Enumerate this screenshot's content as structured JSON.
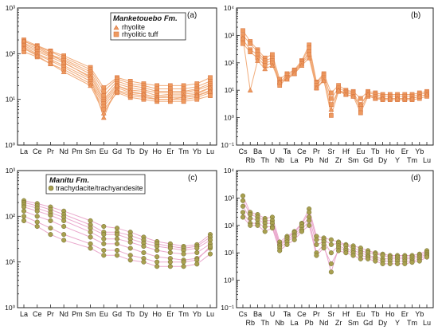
{
  "colors": {
    "orange_line": "#f0a36d",
    "orange_fill": "#ee9a60",
    "orange_stroke": "#d4703a",
    "olive_line": "#e8a0c8",
    "olive_fill": "#a8a050",
    "olive_stroke": "#6f6a2c"
  },
  "chart_data": [
    {
      "type": "line",
      "panel_label": "(a)",
      "scale": "log",
      "ylim_exp": [
        0,
        3
      ],
      "ytick_labels": [
        "10⁰",
        "10¹",
        "10²",
        "10³"
      ],
      "x_top": [
        "La",
        "Ce",
        "Pr",
        "Nd",
        "Pm",
        "Sm",
        "Eu",
        "Gd",
        "Tb",
        "Dy",
        "Ho",
        "Er",
        "Tm",
        "Yb",
        "Lu"
      ],
      "x_bottom": [],
      "legend": {
        "title": "Manketouebo Fm.",
        "entries": [
          {
            "label": "rhyolite",
            "marker": "triangle"
          },
          {
            "label": "rhyolitic tuff",
            "marker": "square"
          }
        ]
      },
      "style": "orange",
      "series": [
        {
          "marker": "square",
          "values": [
            200,
            150,
            115,
            90,
            null,
            50,
            18,
            30,
            25,
            22,
            20,
            20,
            20,
            22,
            30
          ]
        },
        {
          "marker": "square",
          "values": [
            185,
            145,
            110,
            82,
            null,
            45,
            15,
            28,
            22,
            20,
            17,
            17,
            17,
            19,
            25
          ]
        },
        {
          "marker": "square",
          "values": [
            170,
            130,
            95,
            75,
            null,
            40,
            12,
            25,
            20,
            18,
            15,
            15,
            15,
            17,
            22
          ]
        },
        {
          "marker": "square",
          "values": [
            160,
            120,
            90,
            70,
            null,
            36,
            10,
            22,
            18,
            16,
            14,
            14,
            14,
            16,
            20
          ]
        },
        {
          "marker": "square",
          "values": [
            150,
            110,
            85,
            62,
            null,
            32,
            9,
            20,
            16,
            15,
            12,
            13,
            13,
            14,
            18
          ]
        },
        {
          "marker": "square",
          "values": [
            140,
            100,
            75,
            55,
            null,
            28,
            8,
            18,
            14,
            13,
            11,
            11,
            11,
            12,
            16
          ]
        },
        {
          "marker": "square",
          "values": [
            130,
            95,
            70,
            50,
            null,
            25,
            7,
            16,
            13,
            12,
            10,
            10,
            10,
            11,
            14
          ]
        },
        {
          "marker": "square",
          "values": [
            110,
            85,
            60,
            45,
            null,
            22,
            6,
            14,
            11,
            10,
            9,
            9,
            9,
            10,
            12
          ]
        },
        {
          "marker": "triangle",
          "values": [
            190,
            140,
            100,
            65,
            null,
            30,
            4,
            20,
            15,
            13,
            11,
            12,
            12,
            13,
            18
          ]
        },
        {
          "marker": "triangle",
          "values": [
            130,
            90,
            60,
            40,
            null,
            20,
            5,
            15,
            12,
            11,
            10,
            10,
            11,
            12,
            15
          ]
        }
      ]
    },
    {
      "type": "line",
      "panel_label": "(b)",
      "scale": "log",
      "ylim_exp": [
        -1,
        4
      ],
      "ytick_labels": [
        "10⁻¹",
        "10⁰",
        "10¹",
        "10²",
        "10³",
        "10⁴"
      ],
      "x_top": [
        "Cs",
        "",
        "Ba",
        "",
        "U",
        "",
        "Ta",
        "",
        "Ce",
        "",
        "Pr",
        "",
        "Sr",
        "",
        "Hf",
        "",
        "Eu",
        "",
        "Tb",
        "",
        "Ho",
        "",
        "Er",
        "",
        "Yb",
        ""
      ],
      "x_bottom": [
        "",
        "Rb",
        "",
        "Th",
        "",
        "Nb",
        "",
        "La",
        "",
        "Pb",
        "",
        "Nd",
        "",
        "Zr",
        "",
        "Sm",
        "",
        "Gd",
        "",
        "Dy",
        "",
        "Y",
        "",
        "Tm",
        "",
        "Lu"
      ],
      "legend": null,
      "style": "orange",
      "series": [
        {
          "marker": "square",
          "values": [
            1500,
            600,
            300,
            150,
            200,
            25,
            40,
            55,
            120,
            450,
            20,
            40,
            8,
            15,
            10,
            9,
            5,
            9,
            8,
            7,
            7,
            7,
            7,
            7,
            8,
            9
          ]
        },
        {
          "marker": "square",
          "values": [
            1000,
            500,
            250,
            120,
            150,
            20,
            35,
            50,
            110,
            350,
            18,
            35,
            5,
            12,
            9,
            8,
            3,
            8,
            7,
            6,
            6,
            6,
            6,
            6,
            7,
            8
          ]
        },
        {
          "marker": "square",
          "values": [
            700,
            300,
            200,
            100,
            120,
            18,
            30,
            45,
            100,
            250,
            15,
            30,
            3,
            10,
            8,
            7,
            2,
            7,
            6,
            5,
            5,
            5,
            5,
            5,
            6,
            7
          ]
        },
        {
          "marker": "square",
          "values": [
            500,
            250,
            150,
            80,
            100,
            15,
            28,
            40,
            90,
            200,
            12,
            25,
            1.2,
            9,
            7,
            6,
            1.5,
            6,
            5,
            4.5,
            4.5,
            4.5,
            4.5,
            4.5,
            5,
            6
          ]
        },
        {
          "marker": "triangle",
          "values": [
            800,
            10,
            120,
            60,
            80,
            20,
            25,
            40,
            80,
            150,
            12,
            22,
            2,
            10,
            7,
            6,
            3,
            7,
            5,
            5,
            5,
            5,
            5,
            5,
            6,
            7
          ]
        }
      ]
    },
    {
      "type": "line",
      "panel_label": "(c)",
      "scale": "log",
      "ylim_exp": [
        0,
        3
      ],
      "ytick_labels": [
        "10⁰",
        "10¹",
        "10²",
        "10³"
      ],
      "x_top": [
        "La",
        "Ce",
        "Pr",
        "Nd",
        "Pm",
        "Sm",
        "Eu",
        "Gd",
        "Tb",
        "Dy",
        "Ho",
        "Er",
        "Tm",
        "Yb",
        "Lu"
      ],
      "x_bottom": [],
      "legend": {
        "title": "Manitu Fm.",
        "entries": [
          {
            "label": "trachydacite/trachyandesite",
            "marker": "circle"
          }
        ]
      },
      "style": "olive",
      "series": [
        {
          "marker": "circle",
          "values": [
            220,
            190,
            160,
            130,
            null,
            80,
            60,
            55,
            45,
            35,
            28,
            25,
            22,
            24,
            40
          ]
        },
        {
          "marker": "circle",
          "values": [
            200,
            170,
            140,
            110,
            null,
            65,
            45,
            45,
            38,
            30,
            25,
            22,
            20,
            22,
            35
          ]
        },
        {
          "marker": "circle",
          "values": [
            180,
            150,
            120,
            95,
            null,
            55,
            40,
            40,
            32,
            26,
            22,
            20,
            18,
            20,
            30
          ]
        },
        {
          "marker": "circle",
          "values": [
            160,
            130,
            105,
            80,
            null,
            45,
            32,
            32,
            27,
            22,
            18,
            16,
            15,
            16,
            25
          ]
        },
        {
          "marker": "circle",
          "values": [
            130,
            100,
            80,
            60,
            null,
            35,
            25,
            25,
            20,
            16,
            13,
            12,
            11,
            12,
            20
          ]
        },
        {
          "marker": "circle",
          "values": [
            100,
            75,
            55,
            40,
            null,
            25,
            18,
            18,
            14,
            12,
            10,
            10,
            10,
            11,
            22
          ]
        },
        {
          "marker": "circle",
          "values": [
            80,
            60,
            40,
            30,
            null,
            20,
            14,
            14,
            11,
            10,
            8,
            8,
            8,
            9,
            15
          ]
        }
      ]
    },
    {
      "type": "line",
      "panel_label": "(d)",
      "scale": "log",
      "ylim_exp": [
        -1,
        4
      ],
      "ytick_labels": [
        "10⁻¹",
        "10⁰",
        "10¹",
        "10²",
        "10³",
        "10⁴"
      ],
      "x_top": [
        "Cs",
        "",
        "Ba",
        "",
        "U",
        "",
        "Ta",
        "",
        "Ce",
        "",
        "Pr",
        "",
        "Sr",
        "",
        "Hf",
        "",
        "Eu",
        "",
        "Tb",
        "",
        "Ho",
        "",
        "Er",
        "",
        "Yb",
        ""
      ],
      "x_bottom": [
        "",
        "Rb",
        "",
        "Th",
        "",
        "Nb",
        "",
        "La",
        "",
        "Pb",
        "",
        "Nd",
        "",
        "Zr",
        "",
        "Sm",
        "",
        "Gd",
        "",
        "Dy",
        "",
        "Y",
        "",
        "Tm",
        "",
        "Lu"
      ],
      "legend": null,
      "style": "olive",
      "series": [
        {
          "marker": "circle",
          "values": [
            1200,
            300,
            250,
            180,
            200,
            25,
            40,
            60,
            120,
            400,
            40,
            35,
            30,
            25,
            20,
            18,
            15,
            12,
            10,
            9,
            8,
            8,
            8,
            8,
            9,
            12
          ]
        },
        {
          "marker": "circle",
          "values": [
            800,
            250,
            200,
            150,
            150,
            20,
            35,
            55,
            110,
            300,
            30,
            30,
            20,
            22,
            18,
            15,
            12,
            10,
            9,
            8,
            7,
            7,
            7,
            7,
            8,
            10
          ]
        },
        {
          "marker": "circle",
          "values": [
            500,
            180,
            160,
            120,
            120,
            18,
            30,
            45,
            90,
            200,
            20,
            25,
            10,
            18,
            14,
            12,
            10,
            8,
            7,
            6,
            6,
            6,
            6,
            6,
            7,
            9
          ]
        },
        {
          "marker": "circle",
          "values": [
            300,
            120,
            120,
            90,
            90,
            15,
            25,
            40,
            70,
            150,
            10,
            20,
            2,
            15,
            12,
            10,
            8,
            7,
            6,
            5,
            5,
            5,
            5,
            5,
            6,
            8
          ]
        },
        {
          "marker": "circle",
          "values": [
            200,
            100,
            100,
            60,
            80,
            12,
            20,
            30,
            60,
            100,
            8,
            15,
            4,
            12,
            10,
            8,
            6,
            6,
            5,
            4,
            4,
            4,
            4,
            4.5,
            5,
            7
          ]
        }
      ]
    }
  ]
}
